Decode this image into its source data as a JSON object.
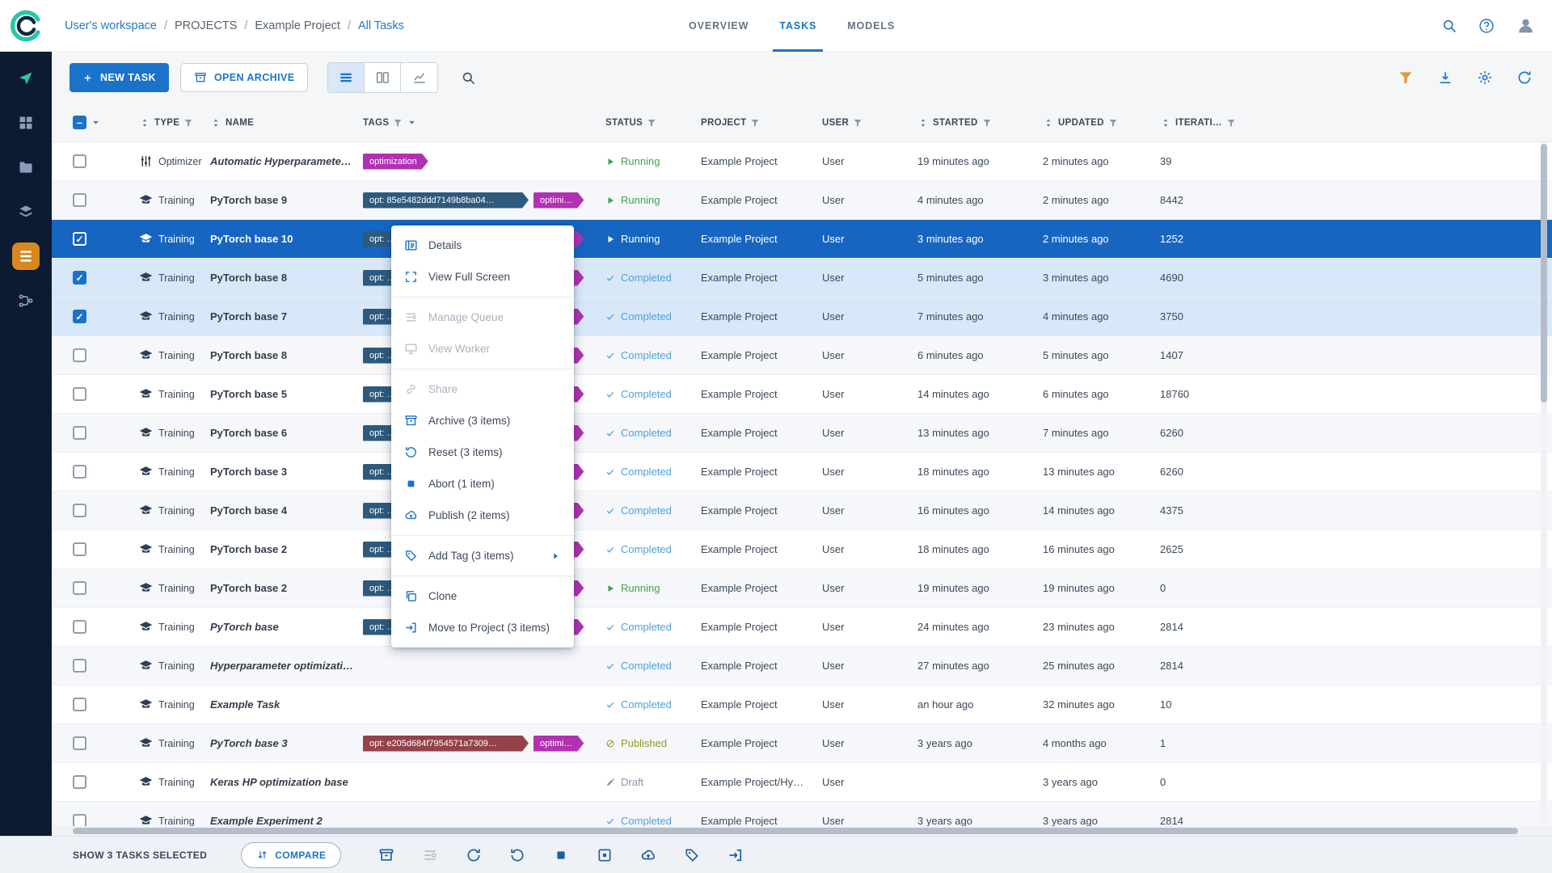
{
  "colors": {
    "primary_blue": "#1a73c9",
    "selected_row_blue": "#1665c1",
    "checked_row_blue": "#d8e8f8",
    "sidebar_navy": "#0c1a32",
    "active_nav_orange": "#d8881c",
    "running_green": "#3fa54a",
    "completed_blue": "#4da1d9",
    "published_olive": "#8f9b24",
    "draft_gray": "#8997a8",
    "tag_magenta": "#b231b2",
    "tag_navy": "#2d5a7d",
    "tag_maroon": "#95424b"
  },
  "topbar": {
    "breadcrumb": [
      {
        "label": "User's workspace",
        "link": true
      },
      {
        "label": "PROJECTS",
        "link": false
      },
      {
        "label": "Example Project",
        "link": false
      },
      {
        "label": "All Tasks",
        "link": true
      }
    ],
    "tabs": [
      {
        "label": "OVERVIEW",
        "active": false
      },
      {
        "label": "TASKS",
        "active": true
      },
      {
        "label": "MODELS",
        "active": false
      }
    ]
  },
  "sidebar": {
    "items": [
      {
        "name": "getting-started",
        "icon": "send-icon",
        "accent": true,
        "active": false
      },
      {
        "name": "dashboard",
        "icon": "dashboard-icon",
        "active": false
      },
      {
        "name": "projects",
        "icon": "projects-icon",
        "active": false
      },
      {
        "name": "datasets",
        "icon": "datasets-icon",
        "active": false
      },
      {
        "name": "experiments",
        "icon": "experiments-icon",
        "active": true
      },
      {
        "name": "pipelines",
        "icon": "pipelines-icon",
        "active": false
      }
    ]
  },
  "toolbar": {
    "new_task_label": "NEW TASK",
    "open_archive_label": "OPEN ARCHIVE"
  },
  "table": {
    "columns": [
      {
        "name": "select",
        "label": "",
        "sortable": false,
        "filterable": false
      },
      {
        "name": "type",
        "label": "TYPE",
        "sortable": true,
        "filterable": true
      },
      {
        "name": "name",
        "label": "NAME",
        "sortable": true,
        "filterable": false
      },
      {
        "name": "tags",
        "label": "TAGS",
        "sortable": false,
        "filterable": true,
        "caret": true
      },
      {
        "name": "status",
        "label": "STATUS",
        "sortable": false,
        "filterable": true
      },
      {
        "name": "project",
        "label": "PROJECT",
        "sortable": false,
        "filterable": true
      },
      {
        "name": "user",
        "label": "USER",
        "sortable": false,
        "filterable": true
      },
      {
        "name": "started",
        "label": "STARTED",
        "sortable": true,
        "filterable": true
      },
      {
        "name": "updated",
        "label": "UPDATED",
        "sortable": true,
        "filterable": true
      },
      {
        "name": "iterations",
        "label": "ITERATI…",
        "sortable": true,
        "filterable": true
      }
    ],
    "rows": [
      {
        "type": "Optimizer",
        "type_icon": "optimizer-icon",
        "name": "Automatic Hyperparamete…",
        "name_italic": true,
        "tags": [
          {
            "label": "optimization",
            "color": "magenta"
          }
        ],
        "status": "Running",
        "status_kind": "running",
        "project": "Example Project",
        "user": "User",
        "started": "19 minutes ago",
        "updated": "2 minutes ago",
        "iterations": "39",
        "state": "normal"
      },
      {
        "type": "Training",
        "type_icon": "training-icon",
        "name": "PyTorch base 9",
        "name_italic": false,
        "tags": [
          {
            "label": "opt: 85e5482ddd7149b8ba04…",
            "color": "navy",
            "wide": true
          },
          {
            "label": "optimi…",
            "color": "magenta"
          }
        ],
        "status": "Running",
        "status_kind": "running",
        "project": "Example Project",
        "user": "User",
        "started": "4 minutes ago",
        "updated": "2 minutes ago",
        "iterations": "8442",
        "state": "normal"
      },
      {
        "type": "Training",
        "type_icon": "training-icon",
        "name": "PyTorch base 10",
        "name_italic": false,
        "tags": [
          {
            "label": "opt: …",
            "color": "navy",
            "wide": true
          },
          {
            "label": "optimi…",
            "color": "magenta"
          }
        ],
        "status": "Running",
        "status_kind": "running",
        "project": "Example Project",
        "user": "User",
        "started": "3 minutes ago",
        "updated": "2 minutes ago",
        "iterations": "1252",
        "state": "selected"
      },
      {
        "type": "Training",
        "type_icon": "training-icon",
        "name": "PyTorch base 8",
        "name_italic": false,
        "tags": [
          {
            "label": "opt: …",
            "color": "navy",
            "wide": true
          },
          {
            "label": "optimi…",
            "color": "magenta"
          }
        ],
        "status": "Completed",
        "status_kind": "completed",
        "project": "Example Project",
        "user": "User",
        "started": "5 minutes ago",
        "updated": "3 minutes ago",
        "iterations": "4690",
        "state": "checked"
      },
      {
        "type": "Training",
        "type_icon": "training-icon",
        "name": "PyTorch base 7",
        "name_italic": false,
        "tags": [
          {
            "label": "opt: …",
            "color": "navy",
            "wide": true
          },
          {
            "label": "optimi…",
            "color": "magenta"
          }
        ],
        "status": "Completed",
        "status_kind": "completed",
        "project": "Example Project",
        "user": "User",
        "started": "7 minutes ago",
        "updated": "4 minutes ago",
        "iterations": "3750",
        "state": "checked"
      },
      {
        "type": "Training",
        "type_icon": "training-icon",
        "name": "PyTorch base 8",
        "name_italic": false,
        "tags": [
          {
            "label": "opt: …",
            "color": "navy",
            "wide": true
          },
          {
            "label": "optimi…",
            "color": "magenta"
          }
        ],
        "status": "Completed",
        "status_kind": "completed",
        "project": "Example Project",
        "user": "User",
        "started": "6 minutes ago",
        "updated": "5 minutes ago",
        "iterations": "1407",
        "state": "normal"
      },
      {
        "type": "Training",
        "type_icon": "training-icon",
        "name": "PyTorch base 5",
        "name_italic": false,
        "tags": [
          {
            "label": "opt: …",
            "color": "navy",
            "wide": true
          },
          {
            "label": "optimi…",
            "color": "magenta"
          }
        ],
        "status": "Completed",
        "status_kind": "completed",
        "project": "Example Project",
        "user": "User",
        "started": "14 minutes ago",
        "updated": "6 minutes ago",
        "iterations": "18760",
        "state": "normal"
      },
      {
        "type": "Training",
        "type_icon": "training-icon",
        "name": "PyTorch base 6",
        "name_italic": false,
        "tags": [
          {
            "label": "opt: …",
            "color": "navy",
            "wide": true
          },
          {
            "label": "optimi…",
            "color": "magenta"
          }
        ],
        "status": "Completed",
        "status_kind": "completed",
        "project": "Example Project",
        "user": "User",
        "started": "13 minutes ago",
        "updated": "7 minutes ago",
        "iterations": "6260",
        "state": "normal"
      },
      {
        "type": "Training",
        "type_icon": "training-icon",
        "name": "PyTorch base 3",
        "name_italic": false,
        "tags": [
          {
            "label": "opt: …",
            "color": "navy",
            "wide": true
          },
          {
            "label": "optimi…",
            "color": "magenta"
          }
        ],
        "status": "Completed",
        "status_kind": "completed",
        "project": "Example Project",
        "user": "User",
        "started": "18 minutes ago",
        "updated": "13 minutes ago",
        "iterations": "6260",
        "state": "normal"
      },
      {
        "type": "Training",
        "type_icon": "training-icon",
        "name": "PyTorch base 4",
        "name_italic": false,
        "tags": [
          {
            "label": "opt: …",
            "color": "navy",
            "wide": true
          },
          {
            "label": "optimi…",
            "color": "magenta"
          }
        ],
        "status": "Completed",
        "status_kind": "completed",
        "project": "Example Project",
        "user": "User",
        "started": "16 minutes ago",
        "updated": "14 minutes ago",
        "iterations": "4375",
        "state": "normal"
      },
      {
        "type": "Training",
        "type_icon": "training-icon",
        "name": "PyTorch base 2",
        "name_italic": false,
        "tags": [
          {
            "label": "opt: …",
            "color": "navy",
            "wide": true
          },
          {
            "label": "optimi…",
            "color": "magenta"
          }
        ],
        "status": "Completed",
        "status_kind": "completed",
        "project": "Example Project",
        "user": "User",
        "started": "18 minutes ago",
        "updated": "16 minutes ago",
        "iterations": "2625",
        "state": "normal"
      },
      {
        "type": "Training",
        "type_icon": "training-icon",
        "name": "PyTorch base 2",
        "name_italic": false,
        "tags": [
          {
            "label": "opt: …",
            "color": "navy",
            "wide": true
          },
          {
            "label": "optimi…",
            "color": "magenta"
          }
        ],
        "status": "Running",
        "status_kind": "running",
        "project": "Example Project",
        "user": "User",
        "started": "19 minutes ago",
        "updated": "19 minutes ago",
        "iterations": "0",
        "state": "normal"
      },
      {
        "type": "Training",
        "type_icon": "training-icon",
        "name": "PyTorch base",
        "name_italic": true,
        "tags": [
          {
            "label": "opt: …",
            "color": "navy",
            "wide": true
          },
          {
            "label": "optimi…",
            "color": "magenta"
          }
        ],
        "status": "Completed",
        "status_kind": "completed",
        "project": "Example Project",
        "user": "User",
        "started": "24 minutes ago",
        "updated": "23 minutes ago",
        "iterations": "2814",
        "state": "normal"
      },
      {
        "type": "Training",
        "type_icon": "training-icon",
        "name": "Hyperparameter optimizati…",
        "name_italic": true,
        "tags": [],
        "status": "Completed",
        "status_kind": "completed",
        "project": "Example Project",
        "user": "User",
        "started": "27 minutes ago",
        "updated": "25 minutes ago",
        "iterations": "2814",
        "state": "normal"
      },
      {
        "type": "Training",
        "type_icon": "training-icon",
        "name": "Example Task",
        "name_italic": true,
        "tags": [],
        "status": "Completed",
        "status_kind": "completed",
        "project": "Example Project",
        "user": "User",
        "started": "an hour ago",
        "updated": "32 minutes ago",
        "iterations": "10",
        "state": "normal"
      },
      {
        "type": "Training",
        "type_icon": "training-icon",
        "name": "PyTorch base 3",
        "name_italic": true,
        "tags": [
          {
            "label": "opt: e205d684f7954571a7309…",
            "color": "maroon",
            "wide": true
          },
          {
            "label": "optimi…",
            "color": "magenta"
          }
        ],
        "status": "Published",
        "status_kind": "published",
        "project": "Example Project",
        "user": "User",
        "started": "3 years ago",
        "updated": "4 months ago",
        "iterations": "1",
        "state": "normal"
      },
      {
        "type": "Training",
        "type_icon": "training-icon",
        "name": "Keras HP optimization base",
        "name_italic": true,
        "tags": [],
        "status": "Draft",
        "status_kind": "draft",
        "project": "Example Project/Hy…",
        "user": "User",
        "started": "",
        "updated": "3 years ago",
        "iterations": "0",
        "state": "normal"
      },
      {
        "type": "Training",
        "type_icon": "training-icon",
        "name": "Example Experiment 2",
        "name_italic": true,
        "tags": [],
        "status": "Completed",
        "status_kind": "completed",
        "project": "Example Project",
        "user": "User",
        "started": "3 years ago",
        "updated": "3 years ago",
        "iterations": "2814",
        "state": "normal"
      }
    ]
  },
  "context_menu": {
    "groups": [
      {
        "items": [
          {
            "label": "Details",
            "icon": "details-icon",
            "disabled": false
          },
          {
            "label": "View Full Screen",
            "icon": "fullscreen-icon",
            "disabled": false
          }
        ]
      },
      {
        "items": [
          {
            "label": "Manage Queue",
            "icon": "queue-icon",
            "disabled": true
          },
          {
            "label": "View Worker",
            "icon": "worker-icon",
            "disabled": true
          }
        ]
      },
      {
        "items": [
          {
            "label": "Share",
            "icon": "share-icon",
            "disabled": true
          },
          {
            "label": "Archive (3 items)",
            "icon": "archive-icon",
            "disabled": false
          },
          {
            "label": "Reset (3 items)",
            "icon": "reset-icon",
            "disabled": false
          },
          {
            "label": "Abort (1 item)",
            "icon": "abort-icon",
            "disabled": false
          },
          {
            "label": "Publish (2 items)",
            "icon": "publish-icon",
            "disabled": false
          }
        ]
      },
      {
        "items": [
          {
            "label": "Add Tag (3 items)",
            "icon": "tag-icon",
            "disabled": false,
            "submenu": true
          }
        ]
      },
      {
        "items": [
          {
            "label": "Clone",
            "icon": "clone-icon",
            "disabled": false
          },
          {
            "label": "Move to Project (3 items)",
            "icon": "move-icon",
            "disabled": false
          }
        ]
      }
    ]
  },
  "footer": {
    "selected_label": "SHOW 3 TASKS SELECTED",
    "compare_label": "COMPARE",
    "actions": [
      {
        "name": "archive",
        "icon": "archive-icon",
        "disabled": false
      },
      {
        "name": "manage-queue",
        "icon": "queue-icon",
        "disabled": true
      },
      {
        "name": "retry",
        "icon": "retry-icon",
        "disabled": false
      },
      {
        "name": "reset",
        "icon": "reset-icon",
        "disabled": false
      },
      {
        "name": "abort",
        "icon": "abort-icon",
        "disabled": false
      },
      {
        "name": "abort-all-children",
        "icon": "abort-children-icon",
        "disabled": false
      },
      {
        "name": "publish",
        "icon": "publish-icon",
        "disabled": false
      },
      {
        "name": "add-tag",
        "icon": "tag-icon",
        "disabled": false
      },
      {
        "name": "move-to-project",
        "icon": "move-icon",
        "disabled": false
      }
    ]
  }
}
